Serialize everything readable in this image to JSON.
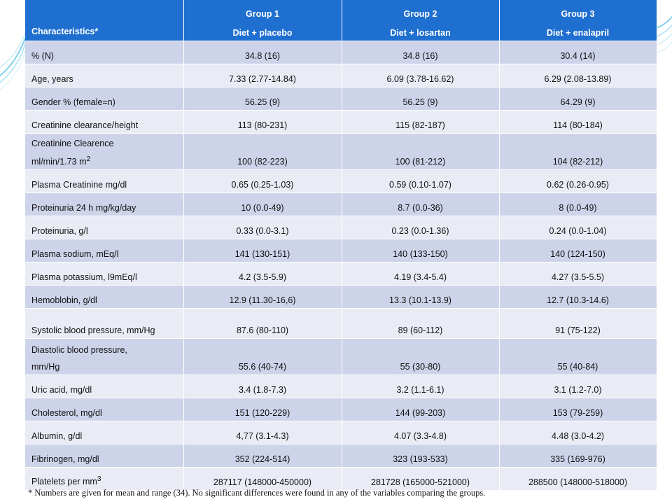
{
  "header": {
    "characteristics": "Characteristics*",
    "groups": [
      {
        "name": "Group 1",
        "sub": "Diet + placebo"
      },
      {
        "name": "Group 2",
        "sub": "Diet + losartan"
      },
      {
        "name": "Group 3",
        "sub": "Diet + enalapril"
      }
    ]
  },
  "rows": [
    {
      "label": "% (N)",
      "v1": "34.8 (16)",
      "v2": "34.8 (16)",
      "v3": "30.4 (14)"
    },
    {
      "label": "Age, years",
      "v1": "7.33 (2.77-14.84)",
      "v2": "6.09 (3.78-16.62)",
      "v3": "6.29 (2.08-13.89)"
    },
    {
      "label": "Gender % (female=n)",
      "v1": "56.25 (9)",
      "v2": "56.25 (9)",
      "v3": "64.29 (9)"
    },
    {
      "label": "Creatinine clearance/height",
      "v1": "113 (80-231)",
      "v2": "115 (82-187)",
      "v3": "114 (80-184)"
    },
    {
      "label": "Creatinine Clearence",
      "label2": "ml/min/1.73 m",
      "label2_sup": "2",
      "v1": "100 (82-223)",
      "v2": "100 (81-212)",
      "v3": "104 (82-212)"
    },
    {
      "label": "Plasma Creatinine mg/dl",
      "v1": "0.65 (0.25-1.03)",
      "v2": "0.59 (0.10-1.07)",
      "v3": "0.62 (0.26-0.95)"
    },
    {
      "label": "Proteinuria 24 h mg/kg/day",
      "v1": "10 (0.0-49)",
      "v2": "8.7 (0.0-36)",
      "v3": "8 (0.0-49)"
    },
    {
      "label": "Proteinuria, g/l",
      "v1": "0.33 (0.0-3.1)",
      "v2": "0.23 (0.0-1.36)",
      "v3": "0.24 (0.0-1.04)"
    },
    {
      "label": "Plasma sodium, mEq/l",
      "v1": "141 (130-151)",
      "v2": "140 (133-150)",
      "v3": "140 (124-150)"
    },
    {
      "label": "Plasma potassium, l9mEq/l",
      "v1": "4.2 (3.5-5.9)",
      "v2": "4.19 (3.4-5.4)",
      "v3": "4.27 (3.5-5.5)"
    },
    {
      "label": "Hemoblobin, g/dl",
      "v1": "12.9 (11.30-16,6)",
      "v2": "13.3 (10.1-13.9)",
      "v3": "12.7 (10.3-14.6)"
    },
    {
      "label": "Systolic blood pressure, mm/Hg",
      "v1": "87.6 (80-110)",
      "v2": "89 (60-112)",
      "v3": "91 (75-122)"
    },
    {
      "label": "Diastolic blood pressure,",
      "label2": "mm/Hg",
      "v1": "55.6 (40-74)",
      "v2": "55 (30-80)",
      "v3": "55 (40-84)"
    },
    {
      "label": "Uric acid, mg/dl",
      "v1": "3.4 (1.8-7.3)",
      "v2": "3.2 (1.1-6.1)",
      "v3": "3.1 (1.2-7.0)"
    },
    {
      "label": "Cholesterol, mg/dl",
      "v1": "151 (120-229)",
      "v2": "144 (99-203)",
      "v3": "153 (79-259)"
    },
    {
      "label": "Albumin, g/dl",
      "v1": "4,77 (3.1-4.3)",
      "v2": "4.07 (3.3-4.8)",
      "v3": "4.48 (3.0-4.2)"
    },
    {
      "label": "Fibrinogen, mg/dl",
      "v1": "352 (224-514)",
      "v2": "323 (193-533)",
      "v3": "335 (169-976)"
    },
    {
      "label": "Platelets per mm",
      "label_sup": "3",
      "v1": "287117 (148000-450000)",
      "v2": "281728 (165000-521000)",
      "v3": "288500 (148000-518000)"
    }
  ],
  "footnote": "* Numbers are given for mean and range (34). No significant differences were found in any of the variables comparing the groups."
}
